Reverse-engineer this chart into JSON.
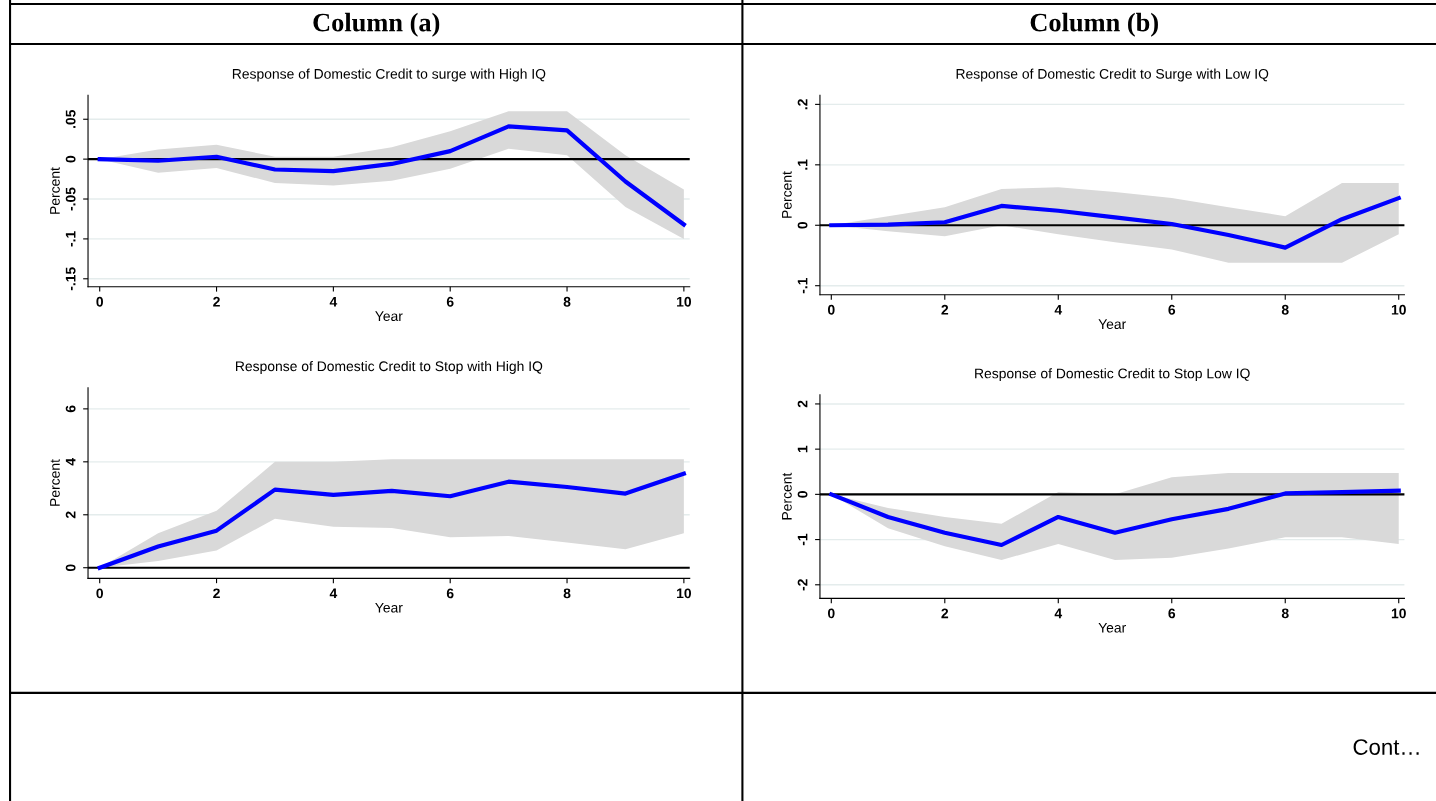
{
  "chart_data": [
    {
      "type": "line",
      "title": "Response of Domestic Credit to surge with High IQ",
      "xlabel": "Year",
      "ylabel": "Percent",
      "annotations": [
        "Column (a)"
      ],
      "x": [
        0,
        1,
        2,
        3,
        4,
        5,
        6,
        7,
        8,
        9,
        10
      ],
      "xlim": [
        -0.2,
        10.1
      ],
      "xticks": [
        0,
        2,
        4,
        6,
        8,
        10
      ],
      "ylim": [
        -0.16,
        0.08
      ],
      "yticks": [
        {
          "value": 0.05,
          "label": ".05"
        },
        0,
        {
          "value": -0.05,
          "label": "-.05"
        },
        {
          "value": -0.1,
          "label": "-.1"
        },
        {
          "value": -0.15,
          "label": "-.15"
        }
      ],
      "grid": "y",
      "ref_lines": [
        {
          "axis": "y",
          "value": 0,
          "color": "#000000"
        }
      ],
      "series": [
        {
          "color": "#0000ff",
          "values": [
            0,
            -0.002,
            0.003,
            -0.013,
            -0.015,
            -0.006,
            0.01,
            0.041,
            0.036,
            -0.028,
            -0.082
          ],
          "lower": [
            0,
            -0.017,
            -0.011,
            -0.03,
            -0.033,
            -0.027,
            -0.012,
            0.013,
            0.005,
            -0.06,
            -0.1
          ],
          "upper": [
            0,
            0.012,
            0.018,
            0.003,
            0.003,
            0.015,
            0.035,
            0.06,
            0.06,
            0.005,
            -0.038
          ]
        }
      ]
    },
    {
      "type": "line",
      "title": "Response of Domestic Credit to Surge with Low IQ",
      "xlabel": "Year",
      "ylabel": "Percent",
      "annotations": [
        "Column (b)"
      ],
      "x": [
        0,
        1,
        2,
        3,
        4,
        5,
        6,
        7,
        8,
        9,
        10
      ],
      "xlim": [
        -0.2,
        10.1
      ],
      "xticks": [
        0,
        2,
        4,
        6,
        8,
        10
      ],
      "ylim": [
        -0.115,
        0.215
      ],
      "yticks": [
        {
          "value": -0.1,
          "label": "-.1"
        },
        0,
        {
          "value": 0.1,
          "label": ".1"
        },
        {
          "value": 0.2,
          "label": ".2"
        }
      ],
      "grid": "y",
      "ref_lines": [
        {
          "axis": "y",
          "value": 0,
          "color": "#000000"
        }
      ],
      "series": [
        {
          "color": "#0000ff",
          "values": [
            0,
            0.001,
            0.005,
            0.032,
            0.024,
            0.013,
            0.002,
            -0.016,
            -0.037,
            0.01,
            0.045
          ],
          "lower": [
            0,
            -0.01,
            -0.018,
            0.0,
            -0.015,
            -0.028,
            -0.04,
            -0.062,
            -0.062,
            -0.062,
            -0.015
          ],
          "upper": [
            0,
            0.015,
            0.03,
            0.06,
            0.063,
            0.055,
            0.045,
            0.03,
            0.015,
            0.07,
            0.07
          ]
        }
      ]
    },
    {
      "type": "line",
      "title": "Response of Domestic Credit to Stop with High IQ",
      "xlabel": "Year",
      "ylabel": "Percent",
      "x": [
        0,
        1,
        2,
        3,
        4,
        5,
        6,
        7,
        8,
        9,
        10
      ],
      "xlim": [
        -0.2,
        10.1
      ],
      "xticks": [
        0,
        2,
        4,
        6,
        8,
        10
      ],
      "ylim": [
        -0.4,
        6.8
      ],
      "yticks": [
        0,
        2,
        4,
        6
      ],
      "grid": "y",
      "ref_lines": [
        {
          "axis": "y",
          "value": 0,
          "color": "#000000"
        }
      ],
      "series": [
        {
          "color": "#0000ff",
          "values": [
            0,
            0.8,
            1.4,
            2.95,
            2.75,
            2.9,
            2.7,
            3.25,
            3.05,
            2.8,
            3.55
          ],
          "lower": [
            0,
            0.25,
            0.65,
            1.85,
            1.55,
            1.5,
            1.15,
            1.2,
            0.95,
            0.7,
            1.3
          ],
          "upper": [
            0,
            1.3,
            2.15,
            4.0,
            4.0,
            4.1,
            4.1,
            4.1,
            4.1,
            4.1,
            4.1
          ]
        }
      ]
    },
    {
      "type": "line",
      "title": "Response of Domestic Credit to Stop Low IQ",
      "xlabel": "Year",
      "ylabel": "Percent",
      "annotations": [
        "Cont…"
      ],
      "x": [
        0,
        1,
        2,
        3,
        4,
        5,
        6,
        7,
        8,
        9,
        10
      ],
      "xlim": [
        -0.2,
        10.1
      ],
      "xticks": [
        0,
        2,
        4,
        6,
        8,
        10
      ],
      "ylim": [
        -2.3,
        2.2
      ],
      "yticks": [
        -2,
        -1,
        0,
        1,
        2
      ],
      "grid": "y",
      "ref_lines": [
        {
          "axis": "y",
          "value": 0,
          "color": "#000000"
        }
      ],
      "series": [
        {
          "color": "#0000ff",
          "values": [
            0,
            -0.5,
            -0.85,
            -1.12,
            -0.5,
            -0.85,
            -0.55,
            -0.32,
            0.02,
            0.05,
            0.08
          ],
          "lower": [
            0,
            -0.75,
            -1.15,
            -1.45,
            -1.1,
            -1.45,
            -1.4,
            -1.2,
            -0.95,
            -0.95,
            -1.1
          ],
          "upper": [
            0,
            -0.3,
            -0.5,
            -0.65,
            0.05,
            0.0,
            0.38,
            0.47,
            0.47,
            0.47,
            0.47
          ]
        }
      ]
    }
  ]
}
